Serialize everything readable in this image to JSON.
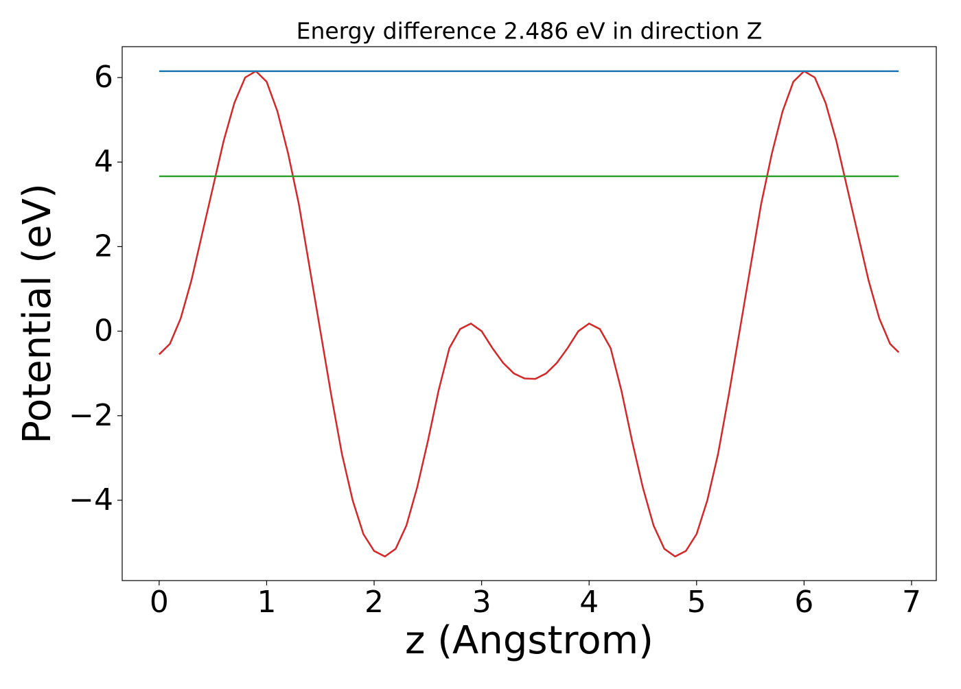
{
  "chart_data": {
    "type": "line",
    "title": "Energy difference 2.486 eV in direction Z",
    "xlabel": "z (Angstrom)",
    "ylabel": "Potential (eV)",
    "xlim": [
      -0.344,
      7.23
    ],
    "ylim": [
      -5.9,
      6.73
    ],
    "xticks": [
      0,
      1,
      2,
      3,
      4,
      5,
      6,
      7
    ],
    "yticks": [
      {
        "value": -4,
        "label": "−4"
      },
      {
        "value": -2,
        "label": "−2"
      },
      0,
      2,
      4,
      6
    ],
    "grid": false,
    "series": [
      {
        "color": "#d62728",
        "x": [
          0,
          0.1,
          0.2,
          0.3,
          0.4,
          0.5,
          0.6,
          0.7,
          0.8,
          0.9,
          1.0,
          1.1,
          1.2,
          1.3,
          1.4,
          1.5,
          1.6,
          1.7,
          1.8,
          1.9,
          2.0,
          2.1,
          2.2,
          2.3,
          2.4,
          2.5,
          2.6,
          2.7,
          2.8,
          2.9,
          3.0,
          3.1,
          3.2,
          3.3,
          3.4,
          3.5,
          3.6,
          3.7,
          3.8,
          3.9,
          4.0,
          4.1,
          4.2,
          4.3,
          4.4,
          4.5,
          4.6,
          4.7,
          4.8,
          4.9,
          5.0,
          5.1,
          5.2,
          5.3,
          5.4,
          5.5,
          5.6,
          5.7,
          5.8,
          5.9,
          6.0,
          6.1,
          6.2,
          6.3,
          6.4,
          6.5,
          6.6,
          6.7,
          6.8,
          6.88
        ],
        "values": [
          -0.55,
          -0.3,
          0.3,
          1.2,
          2.3,
          3.4,
          4.5,
          5.4,
          6.0,
          6.15,
          5.9,
          5.2,
          4.2,
          3.0,
          1.5,
          0,
          -1.5,
          -2.9,
          -4.0,
          -4.8,
          -5.2,
          -5.33,
          -5.15,
          -4.6,
          -3.7,
          -2.6,
          -1.4,
          -0.4,
          0.05,
          0.18,
          0.0,
          -0.4,
          -0.75,
          -1.0,
          -1.12,
          -1.13,
          -1.0,
          -0.75,
          -0.4,
          0.0,
          0.18,
          0.05,
          -0.4,
          -1.4,
          -2.6,
          -3.7,
          -4.6,
          -5.15,
          -5.33,
          -5.2,
          -4.8,
          -4.0,
          -2.9,
          -1.5,
          0,
          1.5,
          3.0,
          4.2,
          5.2,
          5.9,
          6.15,
          6.0,
          5.4,
          4.5,
          3.4,
          2.3,
          1.2,
          0.3,
          -0.3,
          -0.5
        ]
      },
      {
        "color": "#1f77b4",
        "x": [
          0,
          6.88
        ],
        "values": [
          6.15,
          6.15
        ]
      },
      {
        "color": "#2ca02c",
        "x": [
          0,
          6.88
        ],
        "values": [
          3.664,
          3.664
        ]
      }
    ]
  }
}
